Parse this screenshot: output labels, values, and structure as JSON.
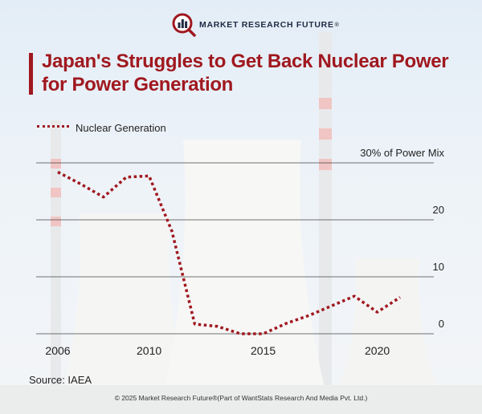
{
  "brand": {
    "name": "MARKET RESEARCH FUTURE",
    "reg": "®"
  },
  "title": "Japan's Struggles to Get Back Nuclear Power for Power Generation",
  "source": "Source: IAEA",
  "footer": "© 2025 Market Research Future®(Part of WantStats Research And Media Pvt. Ltd.)",
  "colors": {
    "accent": "#a0181f",
    "grid": "#444444"
  },
  "chart_data": {
    "type": "line",
    "title": "Japan's Struggles to Get Back Nuclear Power for Power Generation",
    "xlabel": "",
    "ylabel": "% of Power Mix",
    "xlim": [
      2006,
      2022
    ],
    "ylim": [
      0,
      30
    ],
    "x_ticks": [
      2006,
      2010,
      2015,
      2020
    ],
    "y_ticks": [
      {
        "value": 0,
        "label": "0"
      },
      {
        "value": 10,
        "label": "10"
      },
      {
        "value": 20,
        "label": "20"
      },
      {
        "value": 30,
        "label": "30% of Power Mix"
      }
    ],
    "grid": true,
    "series": [
      {
        "name": "Nuclear Generation",
        "style": "dotted",
        "x": [
          2006,
          2007,
          2008,
          2009,
          2010,
          2011,
          2012,
          2013,
          2014,
          2015,
          2016,
          2017,
          2018,
          2019,
          2020,
          2021
        ],
        "y": [
          28.4,
          26.3,
          24.0,
          27.5,
          27.7,
          18.0,
          1.7,
          1.3,
          0,
          0,
          1.8,
          3.2,
          4.9,
          6.6,
          3.8,
          6.4
        ]
      }
    ]
  }
}
